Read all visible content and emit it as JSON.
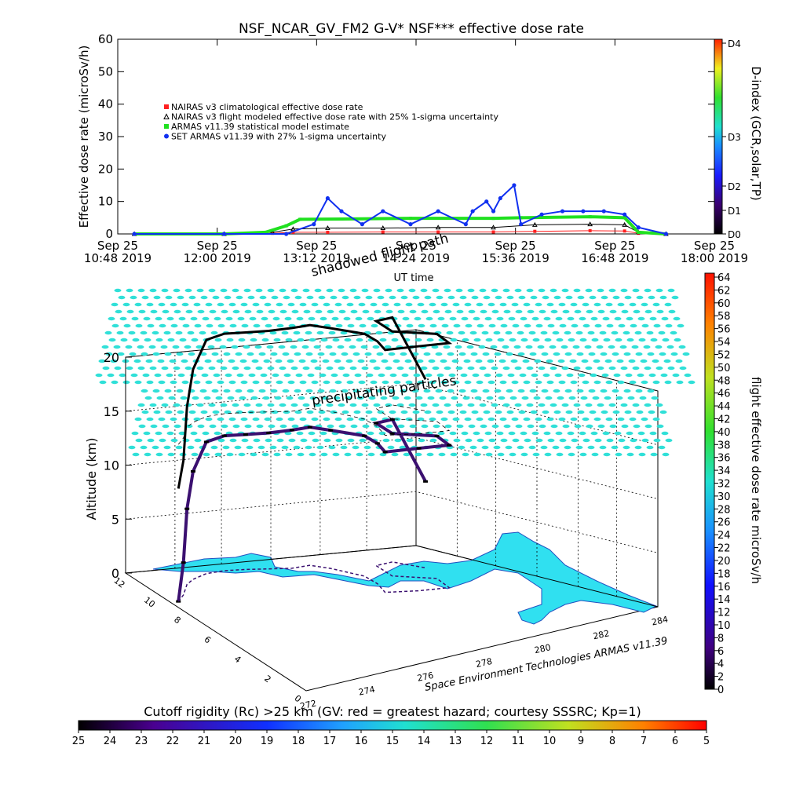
{
  "chart_data": [
    {
      "type": "line",
      "title": "NSF_NCAR_GV_FM2 G-V* NSF*** effective dose rate",
      "xlabel": "UT time",
      "ylabel": "Effective dose rate (microSv/h)",
      "ylim": [
        0,
        60
      ],
      "yticks": [
        0,
        10,
        20,
        30,
        40,
        50,
        60
      ],
      "xlim": [
        "2019-09-25T10:48",
        "2019-09-25T18:00"
      ],
      "xticks": [
        {
          "day": "Sep 25",
          "time": "10:48 2019",
          "t": "2019-09-25T10:48"
        },
        {
          "day": "Sep 25",
          "time": "12:00 2019",
          "t": "2019-09-25T12:00"
        },
        {
          "day": "Sep 25",
          "time": "13:12 2019",
          "t": "2019-09-25T13:12"
        },
        {
          "day": "Sep 25",
          "time": "14:24 2019",
          "t": "2019-09-25T14:24"
        },
        {
          "day": "Sep 25",
          "time": "15:36 2019",
          "t": "2019-09-25T15:36"
        },
        {
          "day": "Sep 25",
          "time": "16:48 2019",
          "t": "2019-09-25T16:48"
        },
        {
          "day": "Sep 25",
          "time": "18:00 2019",
          "t": "2019-09-25T18:00"
        }
      ],
      "legend_position": "upper-left",
      "series": [
        {
          "name": "NAIRAS v3 climatological effective dose rate",
          "color": "#ff2020",
          "x": [
            "2019-09-25T11:00",
            "2019-09-25T12:05",
            "2019-09-25T12:40",
            "2019-09-25T12:55",
            "2019-09-25T13:20",
            "2019-09-25T14:00",
            "2019-09-25T14:40",
            "2019-09-25T15:20",
            "2019-09-25T15:50",
            "2019-09-25T16:30",
            "2019-09-25T16:55",
            "2019-09-25T17:05",
            "2019-09-25T17:25"
          ],
          "y": [
            0,
            0,
            0.2,
            0.5,
            0.5,
            0.6,
            0.6,
            0.6,
            0.8,
            1.0,
            0.9,
            0.2,
            0
          ]
        },
        {
          "name": "NAIRAS v3 flight modeled effective dose rate with 25% 1-sigma uncertainty",
          "color": "#000000",
          "x": [
            "2019-09-25T11:00",
            "2019-09-25T12:05",
            "2019-09-25T12:40",
            "2019-09-25T12:55",
            "2019-09-25T13:20",
            "2019-09-25T14:00",
            "2019-09-25T14:40",
            "2019-09-25T15:20",
            "2019-09-25T15:50",
            "2019-09-25T16:30",
            "2019-09-25T16:55",
            "2019-09-25T17:05",
            "2019-09-25T17:25"
          ],
          "y": [
            0,
            0,
            0.5,
            1.5,
            1.8,
            1.8,
            2.0,
            2.0,
            2.8,
            3.0,
            2.8,
            0.5,
            0
          ]
        },
        {
          "name": "ARMAS v11.39 statistical model estimate",
          "color": "#20e020",
          "x": [
            "2019-09-25T11:00",
            "2019-09-25T12:05",
            "2019-09-25T12:35",
            "2019-09-25T12:50",
            "2019-09-25T13:00",
            "2019-09-25T13:30",
            "2019-09-25T14:20",
            "2019-09-25T15:20",
            "2019-09-25T15:40",
            "2019-09-25T16:30",
            "2019-09-25T16:55",
            "2019-09-25T17:05",
            "2019-09-25T17:25"
          ],
          "y": [
            0,
            0,
            0.5,
            2.5,
            4.5,
            4.6,
            4.8,
            4.8,
            5.0,
            5.3,
            5.0,
            0.5,
            0
          ]
        },
        {
          "name": "SET ARMAS v11.39 with 27% 1-sigma uncertainty",
          "color": "#1030f0",
          "x": [
            "2019-09-25T11:00",
            "2019-09-25T12:05",
            "2019-09-25T12:50",
            "2019-09-25T13:10",
            "2019-09-25T13:20",
            "2019-09-25T13:30",
            "2019-09-25T13:45",
            "2019-09-25T14:00",
            "2019-09-25T14:20",
            "2019-09-25T14:40",
            "2019-09-25T15:00",
            "2019-09-25T15:05",
            "2019-09-25T15:15",
            "2019-09-25T15:20",
            "2019-09-25T15:25",
            "2019-09-25T15:35",
            "2019-09-25T15:40",
            "2019-09-25T15:55",
            "2019-09-25T16:10",
            "2019-09-25T16:25",
            "2019-09-25T16:40",
            "2019-09-25T16:55",
            "2019-09-25T17:05",
            "2019-09-25T17:25"
          ],
          "y": [
            0,
            0,
            0,
            3,
            11,
            7,
            3,
            7,
            3,
            7,
            3,
            7,
            10,
            7,
            11,
            15,
            3,
            6,
            7,
            7,
            7,
            6,
            2,
            0
          ]
        }
      ],
      "colorbar": {
        "label": "D-index (GCR,solar,TP)",
        "ticks": [
          "D0",
          "D1",
          "D2",
          "D3",
          "D4"
        ]
      }
    },
    {
      "type": "scatter",
      "kind": "3d-flight-track",
      "zlabel": "Altitude (km)",
      "zlim": [
        0,
        20
      ],
      "zticks": [
        0,
        5,
        10,
        15,
        20
      ],
      "xticks": [
        272,
        274,
        276,
        278,
        280,
        282,
        284
      ],
      "yticks": [
        0,
        2,
        4,
        6,
        8,
        10,
        12
      ],
      "annotations": [
        "shadowed flight path",
        "precipitating particles"
      ],
      "credit": "Space Environment Technologies ARMAS v11.39",
      "colorbar": {
        "label": "flight effective dose rate microSv/h",
        "min": 0,
        "max": 64,
        "ticks": [
          0,
          2,
          4,
          6,
          8,
          10,
          12,
          14,
          16,
          18,
          20,
          22,
          24,
          26,
          28,
          30,
          32,
          34,
          36,
          38,
          40,
          42,
          44,
          46,
          48,
          50,
          52,
          54,
          56,
          58,
          60,
          62,
          64
        ]
      },
      "flight_track": {
        "lon": [
          272.3,
          272.8,
          273.5,
          274.0,
          274.8,
          275.6,
          276.4,
          277.2,
          278.0,
          278.8,
          279.2,
          279.6,
          279.4,
          279.0,
          280.0,
          281.0,
          281.4,
          280.4,
          280.8,
          281.6,
          282.0
        ],
        "lat": [
          9.0,
          9.5,
          10.4,
          10.8,
          11.2,
          11.3,
          11.2,
          11.0,
          10.8,
          10.9,
          10.3,
          9.0,
          8.0,
          7.0,
          6.6,
          6.4,
          7.6,
          8.6,
          10.0,
          10.2,
          9.0
        ],
        "alt_km": [
          0,
          3,
          7,
          10,
          12.2,
          12.5,
          12.5,
          12.6,
          12.8,
          12.8,
          12.8,
          13.0,
          13.0,
          13.0,
          13.2,
          13.2,
          13.2,
          13.2,
          13.2,
          13.2,
          8
        ],
        "dose": [
          0.5,
          1.5,
          3,
          4.5,
          4.8,
          4.8,
          5,
          5,
          5,
          5.2,
          5.2,
          5.2,
          5.2,
          5.2,
          5.3,
          5.3,
          5.3,
          5.3,
          5.3,
          5.3,
          2
        ]
      }
    },
    {
      "type": "heatmap",
      "kind": "colorbar",
      "label": "Cutoff rigidity (Rc) >25 km (GV: red = greatest hazard; courtesy SSSRC; Kp=1)",
      "ticks": [
        25,
        24,
        23,
        22,
        21,
        20,
        19,
        18,
        17,
        16,
        15,
        14,
        13,
        12,
        11,
        10,
        9,
        8,
        7,
        6,
        5
      ]
    }
  ]
}
